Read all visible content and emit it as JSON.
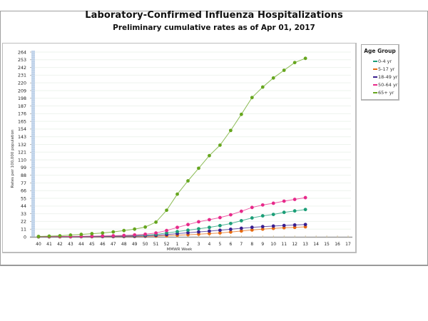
{
  "header": {
    "title": "Laboratory-Confirmed Influenza Hospitalizations",
    "subtitle": "Preliminary cumulative rates as of Apr 01, 2017"
  },
  "legend": {
    "title": "Age Group",
    "items": [
      {
        "label": "0-4 yr",
        "color": "#1b9e77"
      },
      {
        "label": "5-17 yr",
        "color": "#e66a12"
      },
      {
        "label": "18-49 yr",
        "color": "#3a1f8f"
      },
      {
        "label": "50-64 yr",
        "color": "#e7298a"
      },
      {
        "label": "65+ yr",
        "color": "#66a61e"
      }
    ]
  },
  "chart_data": {
    "type": "line",
    "title": "Laboratory-Confirmed Influenza Hospitalizations",
    "subtitle": "Preliminary cumulative rates as of Apr 01, 2017",
    "xlabel": "MMWR Week",
    "ylabel": "Rates per 100,000 population",
    "ylim": [
      0,
      264
    ],
    "yticks": [
      0,
      11,
      22,
      33,
      44,
      55,
      66,
      77,
      88,
      99,
      110,
      121,
      132,
      143,
      154,
      165,
      176,
      187,
      198,
      209,
      220,
      231,
      242,
      253,
      264
    ],
    "categories": [
      "40",
      "41",
      "42",
      "43",
      "44",
      "45",
      "46",
      "47",
      "48",
      "49",
      "50",
      "51",
      "52",
      "1",
      "2",
      "3",
      "4",
      "5",
      "6",
      "7",
      "8",
      "9",
      "10",
      "11",
      "12",
      "13",
      "14",
      "15",
      "16",
      "17"
    ],
    "grid": true,
    "legend_position": "right",
    "legend_title": "Age Group",
    "series": [
      {
        "name": "0-4 yr",
        "color": "#1b9e77",
        "values": [
          0.1,
          0.2,
          0.3,
          0.4,
          0.5,
          0.7,
          0.9,
          1.1,
          1.4,
          1.8,
          2.4,
          3.5,
          5.5,
          7.5,
          9.5,
          11.5,
          13.5,
          16,
          19,
          23,
          27,
          30,
          32,
          35,
          37,
          39
        ]
      },
      {
        "name": "5-17 yr",
        "color": "#e66a12",
        "values": [
          0.0,
          0.1,
          0.1,
          0.1,
          0.2,
          0.2,
          0.3,
          0.3,
          0.4,
          0.5,
          0.7,
          1.0,
          1.6,
          2.3,
          3.0,
          3.8,
          4.6,
          5.5,
          6.8,
          8.3,
          9.8,
          11,
          12,
          13,
          13.5,
          14.3
        ]
      },
      {
        "name": "18-49 yr",
        "color": "#3a1f8f",
        "values": [
          0.1,
          0.1,
          0.2,
          0.2,
          0.3,
          0.4,
          0.5,
          0.6,
          0.8,
          1.0,
          1.4,
          2.1,
          3.3,
          4.6,
          5.8,
          7.0,
          8.2,
          9.4,
          10.8,
          12.2,
          13.6,
          14.6,
          15.4,
          16.2,
          16.9,
          17.6
        ]
      },
      {
        "name": "50-64 yr",
        "color": "#e7298a",
        "values": [
          0.2,
          0.3,
          0.4,
          0.5,
          0.7,
          0.9,
          1.2,
          1.5,
          2.0,
          2.7,
          3.7,
          5.5,
          9.0,
          13.5,
          17.5,
          21.5,
          24.5,
          27.5,
          31.5,
          36.5,
          42,
          45.5,
          48,
          51,
          53.5,
          56
        ]
      },
      {
        "name": "65+ yr",
        "color": "#66a61e",
        "values": [
          0.5,
          1,
          1.5,
          2.5,
          3.5,
          4.5,
          5.5,
          7,
          9,
          11,
          14,
          21,
          38,
          61,
          80,
          98,
          116,
          131,
          152,
          175,
          199,
          214,
          227,
          238,
          249,
          255
        ]
      }
    ]
  }
}
